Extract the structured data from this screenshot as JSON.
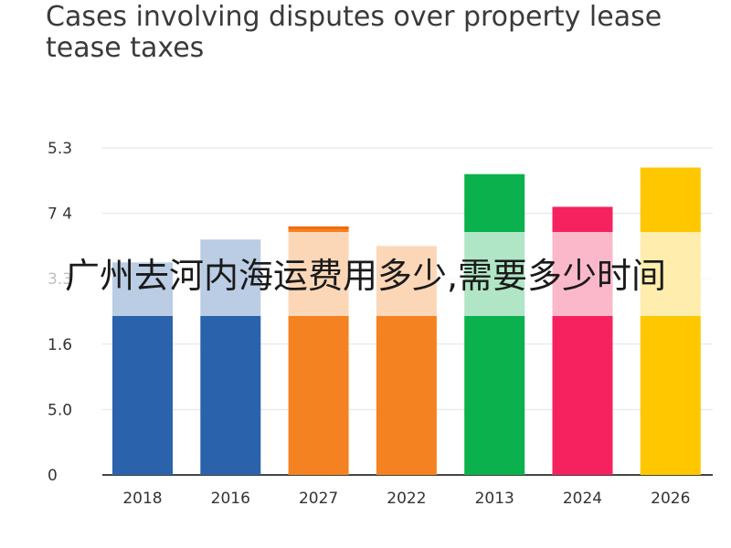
{
  "chart_data": {
    "type": "bar",
    "title": "Cases involving disputes over property lease tease taxes",
    "categories": [
      "2018",
      "2016",
      "2027",
      "2022",
      "2013",
      "2024",
      "2026"
    ],
    "values": [
      3.25,
      3.6,
      3.8,
      3.5,
      4.6,
      4.1,
      4.7
    ],
    "colors": [
      "#2a63ab",
      "#2a63ab",
      "#f58220",
      "#f58220",
      "#0bb14d",
      "#f5225f",
      "#ffc700"
    ],
    "highlight_top": {
      "2027": "#f26b10"
    },
    "y_ticks": [
      "0",
      "5.0",
      "1.6",
      "3.3",
      "7 4",
      "5.3"
    ],
    "xlabel": "",
    "ylabel": "",
    "grid": true,
    "legend": "none"
  },
  "overlay": {
    "text": "广州去河内海运费用多少,需要多少时间"
  }
}
